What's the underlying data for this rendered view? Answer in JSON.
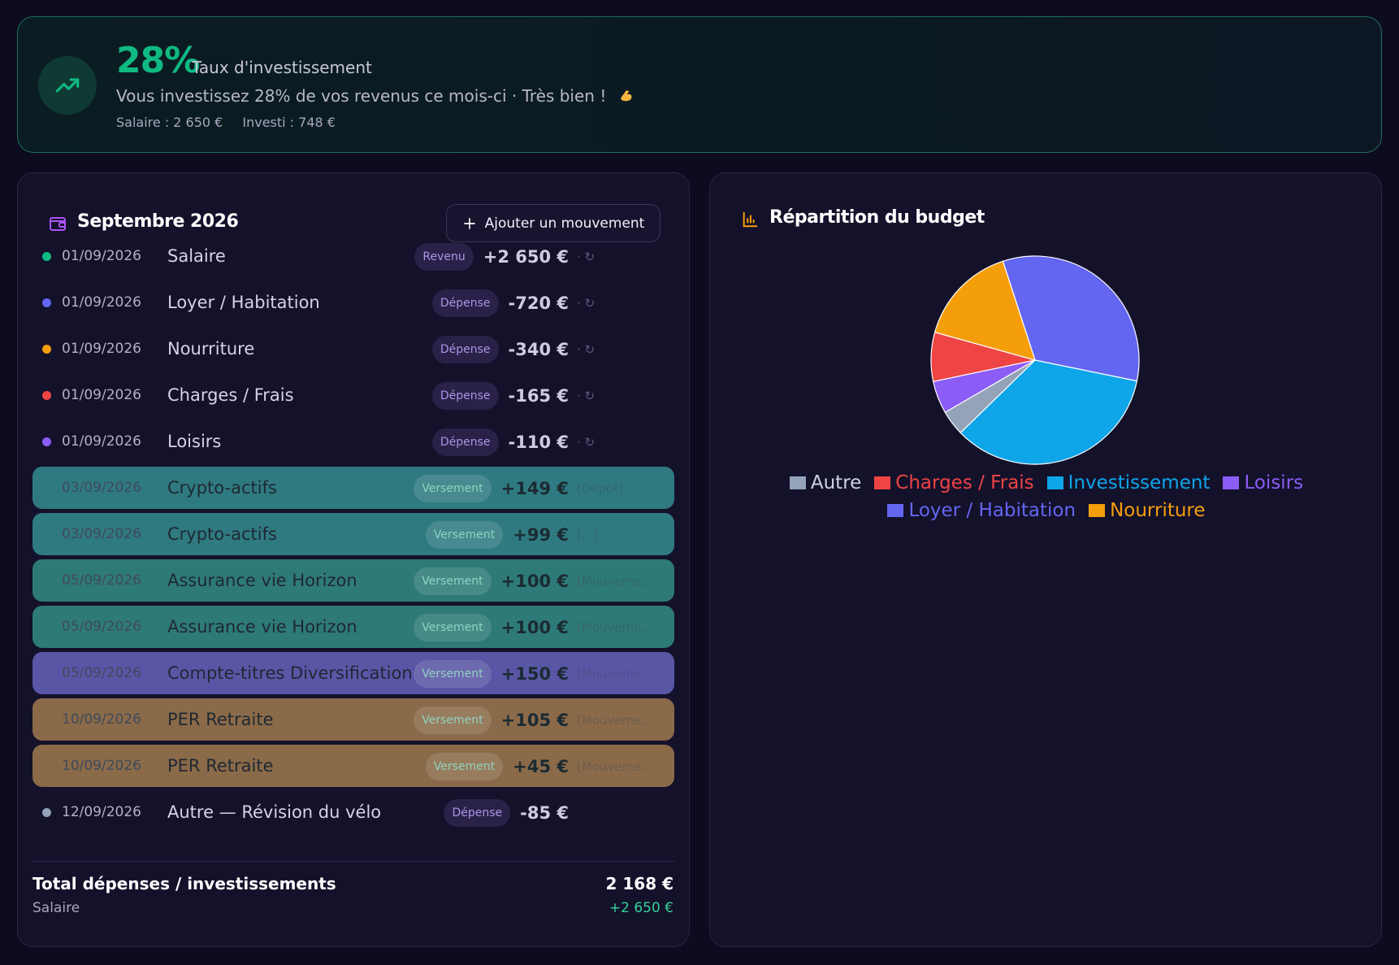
{
  "banner": {
    "rate": "28%",
    "rate_label": "Taux d'investissement",
    "message": "Vous investissez 28% de vos revenus ce mois-ci · Très bien !",
    "salary": "Salaire : 2 650 €",
    "invested": "Investi : 748 €"
  },
  "month": {
    "title": "Septembre 2026",
    "add_button": "Ajouter un mouvement"
  },
  "rows": [
    {
      "date": "01/09/2026",
      "label": "Salaire",
      "badge": "Revenu",
      "amount": "+2 650 €",
      "tail": "· ↻",
      "kind": "plain",
      "dot": "#10b981"
    },
    {
      "date": "01/09/2026",
      "label": "Loyer / Habitation",
      "badge": "Dépense",
      "amount": "-720 €",
      "tail": "· ↻",
      "kind": "plain",
      "dot": "#6366f1"
    },
    {
      "date": "01/09/2026",
      "label": "Nourriture",
      "badge": "Dépense",
      "amount": "-340 €",
      "tail": "· ↻",
      "kind": "plain",
      "dot": "#f59e0b"
    },
    {
      "date": "01/09/2026",
      "label": "Charges / Frais",
      "badge": "Dépense",
      "amount": "-165 €",
      "tail": "· ↻",
      "kind": "plain",
      "dot": "#ef4444"
    },
    {
      "date": "01/09/2026",
      "label": "Loisirs",
      "badge": "Dépense",
      "amount": "-110 €",
      "tail": "· ↻",
      "kind": "plain",
      "dot": "#8b5cf6"
    },
    {
      "date": "03/09/2026",
      "label": "Crypto-actifs",
      "badge": "Versement",
      "amount": "+149 €",
      "tail": "[Dépôt]",
      "kind": "colored",
      "bg": "#2f7a80"
    },
    {
      "date": "03/09/2026",
      "label": "Crypto-actifs",
      "badge": "Versement",
      "amount": "+99 €",
      "tail": "[...]",
      "kind": "colored",
      "bg": "#2f7a80"
    },
    {
      "date": "05/09/2026",
      "label": "Assurance vie Horizon",
      "badge": "Versement",
      "amount": "+100 €",
      "tail": "[Mouveme...",
      "kind": "colored",
      "bg": "#2e7a78"
    },
    {
      "date": "05/09/2026",
      "label": "Assurance vie Horizon",
      "badge": "Versement",
      "amount": "+100 €",
      "tail": "[Mouveme...",
      "kind": "colored",
      "bg": "#2e7a78"
    },
    {
      "date": "05/09/2026",
      "label": "Compte-titres Diversification",
      "badge": "Versement",
      "amount": "+150 €",
      "tail": "[Mouveme...",
      "kind": "colored",
      "bg": "#5a56a6"
    },
    {
      "date": "10/09/2026",
      "label": "PER Retraite",
      "badge": "Versement",
      "amount": "+105 €",
      "tail": "[Mouveme...",
      "kind": "colored",
      "bg": "#8a6a48"
    },
    {
      "date": "10/09/2026",
      "label": "PER Retraite",
      "badge": "Versement",
      "amount": "+45 €",
      "tail": "[Mouveme...",
      "kind": "colored",
      "bg": "#8a6a48"
    },
    {
      "date": "12/09/2026",
      "label": "Autre — Révision du vélo",
      "badge": "Dépense",
      "amount": "-85 €",
      "tail": "",
      "kind": "plain",
      "dot": "#94a3b8"
    }
  ],
  "totals": {
    "label": "Total dépenses / investissements",
    "value": "2 168 €",
    "salary_label": "Salaire",
    "salary_value": "+2 650 €"
  },
  "chart": {
    "title": "Répartition du budget"
  },
  "chart_data": {
    "type": "pie",
    "title": "Répartition du budget",
    "slices": [
      {
        "name": "Loyer / Habitation",
        "value": 720,
        "color": "#6366f1"
      },
      {
        "name": "Investissement",
        "value": 748,
        "color": "#0ea5e9"
      },
      {
        "name": "Autre",
        "value": 85,
        "color": "#94a3b8"
      },
      {
        "name": "Loisirs",
        "value": 110,
        "color": "#8b5cf6"
      },
      {
        "name": "Charges / Frais",
        "value": 165,
        "color": "#ef4444"
      },
      {
        "name": "Nourriture",
        "value": 340,
        "color": "#f59e0b"
      }
    ],
    "legend": [
      {
        "name": "Autre",
        "color": "#94a3b8"
      },
      {
        "name": "Charges / Frais",
        "color": "#ef4444"
      },
      {
        "name": "Investissement",
        "color": "#0ea5e9"
      },
      {
        "name": "Loisirs",
        "color": "#8b5cf6"
      },
      {
        "name": "Loyer / Habitation",
        "color": "#6366f1"
      },
      {
        "name": "Nourriture",
        "color": "#f59e0b"
      }
    ],
    "legend_placement": "bottom"
  }
}
